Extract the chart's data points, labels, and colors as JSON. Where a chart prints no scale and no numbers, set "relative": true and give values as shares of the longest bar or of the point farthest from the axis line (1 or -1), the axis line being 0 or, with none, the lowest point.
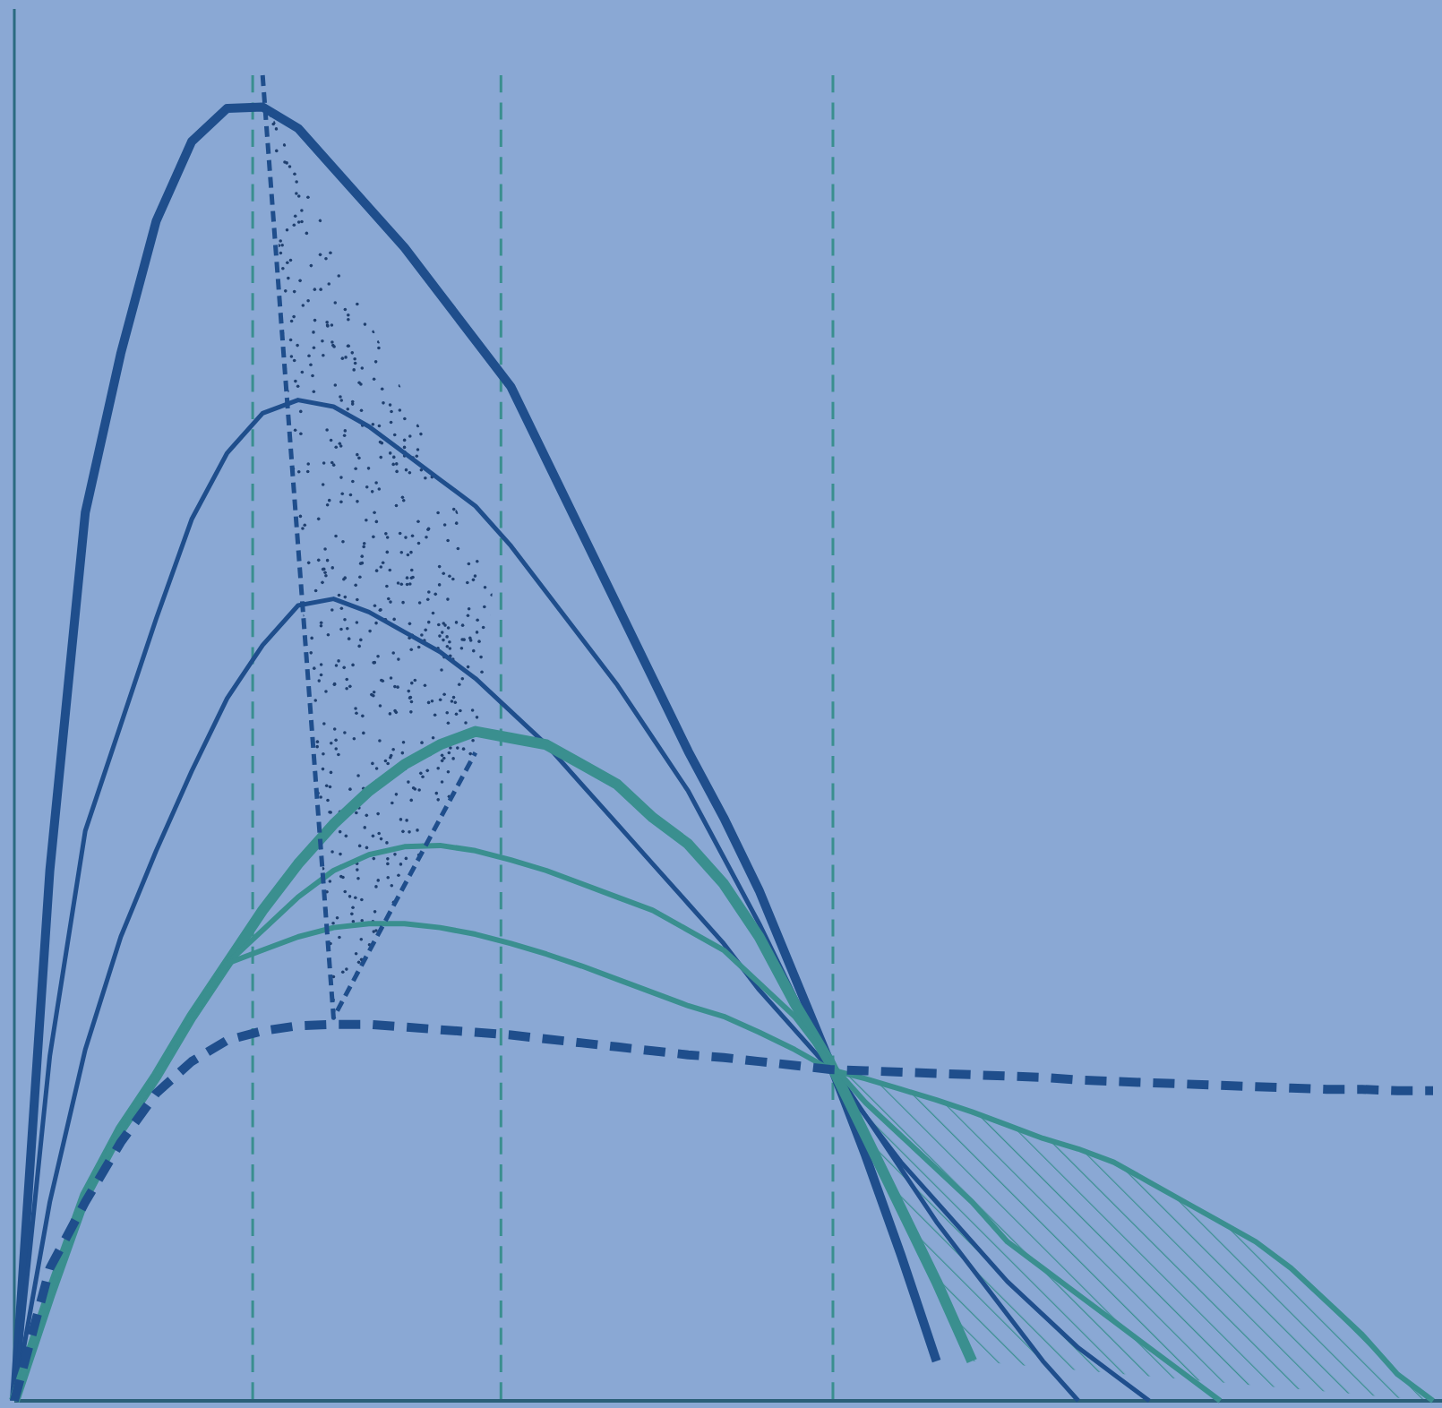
{
  "chart_data": {
    "type": "line",
    "relative": true,
    "categories": [
      null,
      null,
      null,
      null,
      null,
      null,
      null,
      null,
      null,
      null,
      null,
      null,
      null,
      null,
      null,
      null,
      null,
      null,
      null,
      null,
      null,
      null,
      null,
      null,
      null,
      null,
      null,
      null,
      null,
      null,
      null,
      null,
      null,
      null,
      null,
      null,
      null,
      null,
      null,
      null,
      null
    ],
    "series": [
      {
        "color": "#1f4e8c",
        "values": [
          0,
          0.4,
          0.67,
          0.79,
          0.89,
          0.95,
          0.975,
          0.976,
          0.96,
          0.93,
          0.9,
          0.87,
          0.835,
          0.8,
          0.765,
          0.71,
          0.655,
          0.6,
          0.545,
          0.49,
          0.44,
          0.385,
          0.32,
          0.255,
          0.185,
          0.11,
          0.03,
          null,
          null,
          null,
          null,
          null,
          null,
          null,
          null,
          null,
          null,
          null,
          null,
          null,
          null
        ]
      },
      {
        "color": "#1f4e8c",
        "values": [
          0,
          0.26,
          0.43,
          0.51,
          0.59,
          0.665,
          0.715,
          0.745,
          0.755,
          0.75,
          0.735,
          0.715,
          0.695,
          0.675,
          0.645,
          0.61,
          0.575,
          0.54,
          0.5,
          0.46,
          0.41,
          0.36,
          0.305,
          0.255,
          0.215,
          0.175,
          0.135,
          0.1,
          0.065,
          0.03,
          0,
          null,
          null,
          null,
          null,
          null,
          null,
          null,
          null,
          null,
          null
        ]
      },
      {
        "color": "#1f4e8c",
        "values": [
          0,
          0.15,
          0.265,
          0.35,
          0.415,
          0.475,
          0.53,
          0.57,
          0.6,
          0.605,
          0.595,
          0.58,
          0.565,
          0.545,
          0.52,
          0.495,
          0.465,
          0.435,
          0.405,
          0.375,
          0.345,
          0.31,
          0.28,
          0.25,
          0.215,
          0.18,
          0.15,
          0.12,
          0.09,
          0.065,
          0.04,
          0.02,
          0,
          null,
          null,
          null,
          null,
          null,
          null,
          null,
          null
        ]
      },
      {
        "color": "#3a8f8f",
        "values": [
          0,
          0.08,
          0.155,
          0.205,
          0.245,
          0.29,
          0.33,
          0.37,
          0.405,
          0.435,
          0.46,
          0.48,
          0.495,
          0.505,
          0.5,
          0.495,
          0.48,
          0.465,
          0.44,
          0.42,
          0.39,
          0.35,
          0.3,
          0.255,
          0.2,
          0.145,
          0.09,
          0.03,
          null,
          null,
          null,
          null,
          null,
          null,
          null,
          null,
          null,
          null,
          null,
          null,
          null
        ]
      },
      {
        "color": "#3a8f8f",
        "values": [
          0,
          0.08,
          0.155,
          0.205,
          0.245,
          0.29,
          0.33,
          0.355,
          0.38,
          0.4,
          0.412,
          0.418,
          0.419,
          0.415,
          0.408,
          0.4,
          0.39,
          0.38,
          0.37,
          0.355,
          0.34,
          0.315,
          0.29,
          0.255,
          0.225,
          0.2,
          0.175,
          0.15,
          0.12,
          0.1,
          0.08,
          0.06,
          0.04,
          0.02,
          0,
          null,
          null,
          null,
          null,
          null,
          null
        ]
      },
      {
        "color": "#3a8f8f",
        "values": [
          0,
          0.08,
          0.155,
          0.205,
          0.245,
          0.29,
          0.33,
          0.34,
          0.35,
          0.357,
          0.36,
          0.36,
          0.357,
          0.352,
          0.345,
          0.337,
          0.328,
          0.318,
          0.308,
          0.298,
          0.29,
          0.278,
          0.265,
          0.25,
          0.243,
          0.235,
          0.227,
          0.218,
          0.208,
          0.198,
          0.19,
          0.18,
          0.165,
          0.15,
          0.135,
          0.12,
          0.1,
          0.075,
          0.05,
          0.02,
          0
        ]
      },
      {
        "color": "#1f4e8c",
        "line_style": "dashed",
        "values": [
          0,
          0.1,
          0.15,
          0.195,
          0.232,
          0.256,
          0.272,
          0.279,
          0.283,
          0.284,
          0.284,
          0.282,
          0.28,
          0.278,
          0.276,
          0.273,
          0.27,
          0.267,
          0.264,
          0.261,
          0.259,
          0.256,
          0.253,
          0.25,
          0.249,
          0.248,
          0.247,
          0.246,
          0.245,
          0.244,
          0.242,
          0.241,
          0.24,
          0.239,
          0.238,
          0.237,
          0.236,
          0.235,
          0.235,
          0.234,
          0.234
        ]
      },
      {
        "color": "#1f4e8c",
        "line_style": "dashed",
        "values": [
          null,
          null,
          null,
          null,
          null,
          null,
          null,
          1.0,
          0.645,
          0.289,
          0.339,
          0.389,
          0.439,
          0.489,
          null,
          null,
          null,
          null,
          null,
          null,
          null,
          null,
          null,
          null,
          null,
          null,
          null,
          null,
          null,
          null,
          null,
          null,
          null,
          null,
          null,
          null,
          null,
          null,
          null,
          null,
          null
        ]
      }
    ]
  }
}
